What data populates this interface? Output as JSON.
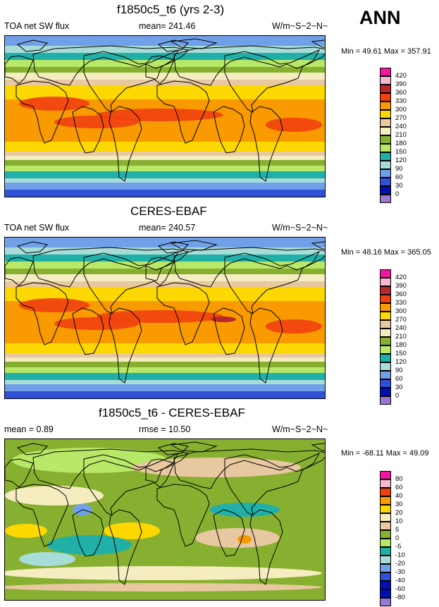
{
  "season": "ANN",
  "panels": [
    {
      "title": "f1850c5_t6 (yrs 2-3)",
      "left_label": "TOA net SW flux",
      "center_label": "mean= 241.46",
      "units": "W/m~S~2~N~",
      "minmax": "Min =  49.61 Max = 357.91",
      "levels": [
        "420",
        "390",
        "360",
        "330",
        "300",
        "270",
        "240",
        "210",
        "180",
        "150",
        "120",
        "90",
        "60",
        "30",
        "0"
      ],
      "colors": [
        "#f018a0",
        "#f5b8d0",
        "#b82828",
        "#f04010",
        "#f89a00",
        "#fcd800",
        "#e8c8a0",
        "#f5ecc0",
        "#88b030",
        "#b8e868",
        "#20b0a8",
        "#a8dcd8",
        "#70a0e8",
        "#3050d8",
        "#0010b0",
        "#9878d0"
      ]
    },
    {
      "title": "CERES-EBAF",
      "left_label": "TOA net SW flux",
      "center_label": "mean= 240.57",
      "units": "W/m~S~2~N~",
      "minmax": "Min =  48.16 Max = 365.05",
      "levels": [
        "420",
        "390",
        "360",
        "330",
        "300",
        "270",
        "240",
        "210",
        "180",
        "150",
        "120",
        "90",
        "60",
        "30",
        "0"
      ],
      "colors": [
        "#f018a0",
        "#f5b8d0",
        "#b82828",
        "#f04010",
        "#f89a00",
        "#fcd800",
        "#e8c8a0",
        "#f5ecc0",
        "#88b030",
        "#b8e868",
        "#20b0a8",
        "#a8dcd8",
        "#70a0e8",
        "#3050d8",
        "#0010b0",
        "#9878d0"
      ]
    },
    {
      "title": "f1850c5_t6 - CERES-EBAF",
      "left_label": "mean =  0.89",
      "center_label": "rmse =  10.50",
      "units": "W/m~S~2~N~",
      "minmax": "Min = -68.11 Max =  49.09",
      "levels": [
        "80",
        "60",
        "40",
        "30",
        "20",
        "10",
        "5",
        "0",
        "-5",
        "-10",
        "-20",
        "-30",
        "-40",
        "-60",
        "-80"
      ],
      "colors": [
        "#f018a0",
        "#f5b8d0",
        "#f04010",
        "#f89a00",
        "#fcd800",
        "#f5ecc0",
        "#e8c8a0",
        "#88b030",
        "#b8e868",
        "#20b0a8",
        "#a8dcd8",
        "#70a0e8",
        "#3050d8",
        "#0010b0",
        "#0010b0",
        "#9878d0"
      ]
    }
  ]
}
